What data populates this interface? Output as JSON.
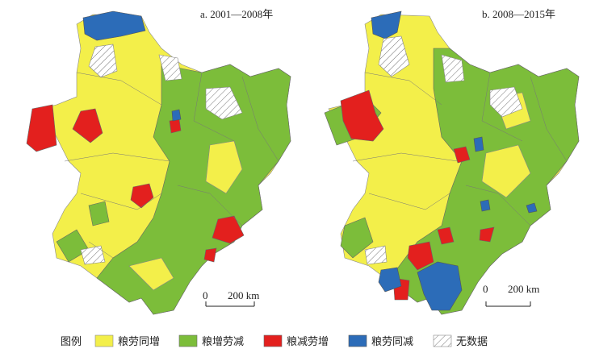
{
  "panels": [
    {
      "title": "a. 2001—2008年",
      "scale_zero": "0",
      "scale_label": "200 km"
    },
    {
      "title": "b. 2008—2015年",
      "scale_zero": "0",
      "scale_label": "200 km"
    }
  ],
  "legend": {
    "title": "图例",
    "items": [
      "粮劳同增",
      "粮增劳减",
      "粮减劳增",
      "粮劳同减",
      "无数据"
    ]
  }
}
